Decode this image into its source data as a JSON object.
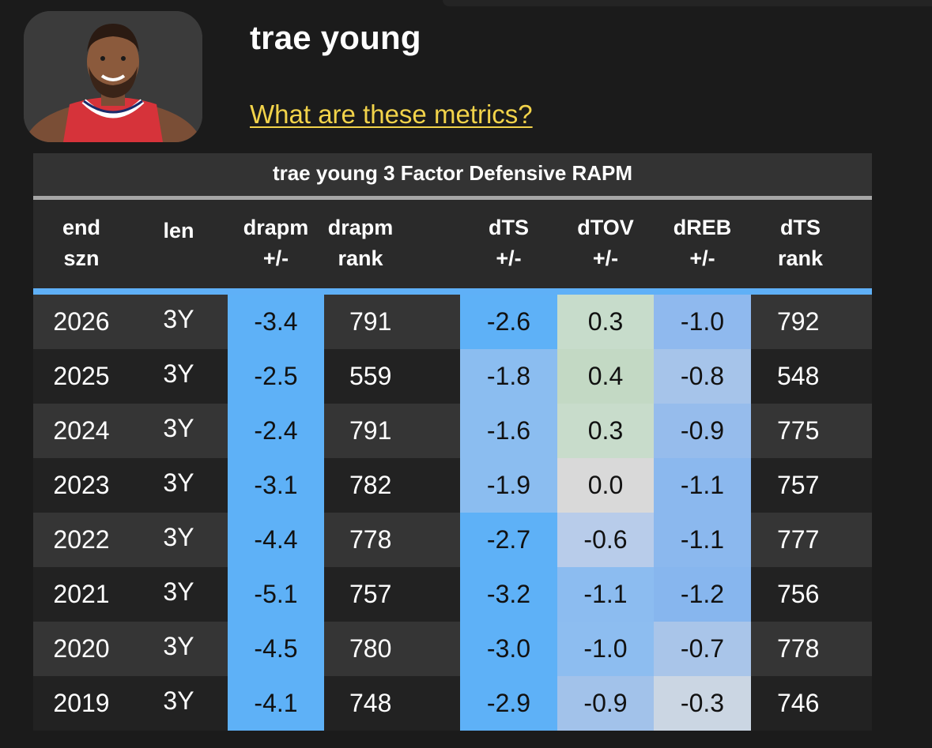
{
  "player": {
    "name": "trae young",
    "metrics_link": "What are these metrics?"
  },
  "table": {
    "title": "trae young 3 Factor Defensive RAPM",
    "columns": [
      {
        "line1": "end",
        "line2": "szn"
      },
      {
        "line1": "len",
        "line2": ""
      },
      {
        "line1": "drapm",
        "line2": "+/-"
      },
      {
        "line1": "drapm",
        "line2": "rank"
      },
      {
        "line1": "dTS",
        "line2": "+/-"
      },
      {
        "line1": "dTOV",
        "line2": "+/-"
      },
      {
        "line1": "dREB",
        "line2": "+/-"
      },
      {
        "line1": "dTS",
        "line2": "rank"
      }
    ],
    "rows": [
      {
        "end_szn": "2026",
        "len": "3Y",
        "drapm": "-3.4",
        "drapm_rank": "791",
        "dts": "-2.6",
        "dtov": "0.3",
        "dreb": "-1.0",
        "dts_rank": "792"
      },
      {
        "end_szn": "2025",
        "len": "3Y",
        "drapm": "-2.5",
        "drapm_rank": "559",
        "dts": "-1.8",
        "dtov": "0.4",
        "dreb": "-0.8",
        "dts_rank": "548"
      },
      {
        "end_szn": "2024",
        "len": "3Y",
        "drapm": "-2.4",
        "drapm_rank": "791",
        "dts": "-1.6",
        "dtov": "0.3",
        "dreb": "-0.9",
        "dts_rank": "775"
      },
      {
        "end_szn": "2023",
        "len": "3Y",
        "drapm": "-3.1",
        "drapm_rank": "782",
        "dts": "-1.9",
        "dtov": "0.0",
        "dreb": "-1.1",
        "dts_rank": "757"
      },
      {
        "end_szn": "2022",
        "len": "3Y",
        "drapm": "-4.4",
        "drapm_rank": "778",
        "dts": "-2.7",
        "dtov": "-0.6",
        "dreb": "-1.1",
        "dts_rank": "777"
      },
      {
        "end_szn": "2021",
        "len": "3Y",
        "drapm": "-5.1",
        "drapm_rank": "757",
        "dts": "-3.2",
        "dtov": "-1.1",
        "dreb": "-1.2",
        "dts_rank": "756"
      },
      {
        "end_szn": "2020",
        "len": "3Y",
        "drapm": "-4.5",
        "drapm_rank": "780",
        "dts": "-3.0",
        "dtov": "-1.0",
        "dreb": "-0.7",
        "dts_rank": "778"
      },
      {
        "end_szn": "2019",
        "len": "3Y",
        "drapm": "-4.1",
        "drapm_rank": "748",
        "dts": "-2.9",
        "dtov": "-0.9",
        "dreb": "-0.3",
        "dts_rank": "746"
      }
    ],
    "colors": {
      "row_even": "#353535",
      "row_odd": "#222222",
      "drapm_cells": [
        "#5eb1f7",
        "#5eb1f7",
        "#5eb1f7",
        "#5eb1f7",
        "#5eb1f7",
        "#5eb1f7",
        "#5eb1f7",
        "#5eb1f7"
      ],
      "dts_cells": [
        "#5eb1f7",
        "#8bbdf0",
        "#8bbdf0",
        "#8bbdf0",
        "#5eb1f7",
        "#5eb1f7",
        "#5eb1f7",
        "#5eb1f7"
      ],
      "dtov_cells": [
        "#c7dccb",
        "#c3d9c4",
        "#c8dccb",
        "#d9d9d9",
        "#b8ccea",
        "#8cbcf0",
        "#8dbdf0",
        "#a2c2ea"
      ],
      "dreb_cells": [
        "#8fb9ee",
        "#a6c4ea",
        "#96bcec",
        "#8bb8ee",
        "#8bb8ee",
        "#87b6ee",
        "#a9c5e9",
        "#cbd6e3"
      ]
    }
  }
}
